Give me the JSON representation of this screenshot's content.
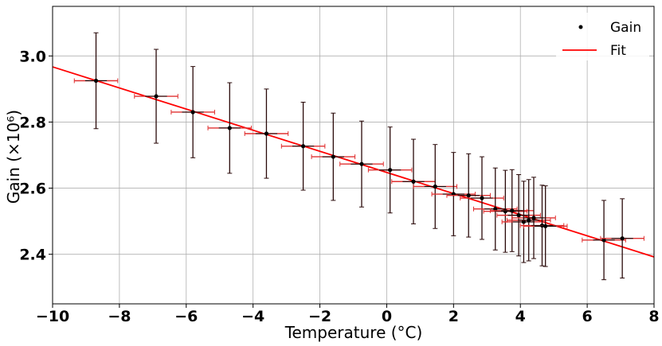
{
  "chart_data": {
    "type": "scatter",
    "xlabel": "Temperature (°C)",
    "ylabel": "Gain (×10⁶)",
    "xlim": [
      -10,
      8
    ],
    "ylim": [
      2.25,
      3.15
    ],
    "x_ticks": [
      "−10",
      "−8",
      "−6",
      "−4",
      "−2",
      "0",
      "2",
      "4",
      "6",
      "8"
    ],
    "y_ticks": [
      "2.4",
      "2.6",
      "2.8",
      "3.0"
    ],
    "grid": true,
    "legend_position": "top-right",
    "series": [
      {
        "name": "Gain",
        "kind": "points-with-errorbars",
        "color": "#000000",
        "x_err": 0.65,
        "points": [
          {
            "x": -8.7,
            "y": 2.925,
            "yerr": 0.145
          },
          {
            "x": -6.9,
            "y": 2.878,
            "yerr": 0.142
          },
          {
            "x": -5.8,
            "y": 2.83,
            "yerr": 0.138
          },
          {
            "x": -4.7,
            "y": 2.782,
            "yerr": 0.137
          },
          {
            "x": -3.6,
            "y": 2.765,
            "yerr": 0.135
          },
          {
            "x": -2.5,
            "y": 2.727,
            "yerr": 0.133
          },
          {
            "x": -1.6,
            "y": 2.695,
            "yerr": 0.132
          },
          {
            "x": -0.75,
            "y": 2.673,
            "yerr": 0.13
          },
          {
            "x": 0.1,
            "y": 2.655,
            "yerr": 0.13
          },
          {
            "x": 0.8,
            "y": 2.62,
            "yerr": 0.128
          },
          {
            "x": 1.45,
            "y": 2.605,
            "yerr": 0.127
          },
          {
            "x": 2.0,
            "y": 2.582,
            "yerr": 0.126
          },
          {
            "x": 2.45,
            "y": 2.578,
            "yerr": 0.126
          },
          {
            "x": 2.85,
            "y": 2.57,
            "yerr": 0.125
          },
          {
            "x": 3.25,
            "y": 2.537,
            "yerr": 0.124
          },
          {
            "x": 3.55,
            "y": 2.53,
            "yerr": 0.124
          },
          {
            "x": 3.75,
            "y": 2.532,
            "yerr": 0.124
          },
          {
            "x": 3.95,
            "y": 2.518,
            "yerr": 0.123
          },
          {
            "x": 4.1,
            "y": 2.498,
            "yerr": 0.123
          },
          {
            "x": 4.25,
            "y": 2.503,
            "yerr": 0.123
          },
          {
            "x": 4.4,
            "y": 2.51,
            "yerr": 0.123
          },
          {
            "x": 4.65,
            "y": 2.487,
            "yerr": 0.122
          },
          {
            "x": 4.75,
            "y": 2.485,
            "yerr": 0.122
          },
          {
            "x": 6.5,
            "y": 2.443,
            "yerr": 0.12
          },
          {
            "x": 7.05,
            "y": 2.448,
            "yerr": 0.12
          }
        ]
      },
      {
        "name": "Fit",
        "kind": "line",
        "color": "#ff0000",
        "x": [
          -10,
          8
        ],
        "y": [
          2.967,
          2.392
        ]
      }
    ]
  }
}
